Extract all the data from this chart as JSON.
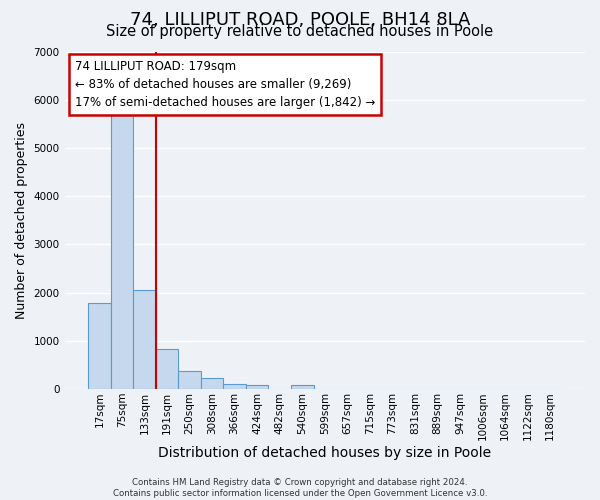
{
  "title": "74, LILLIPUT ROAD, POOLE, BH14 8LA",
  "subtitle": "Size of property relative to detached houses in Poole",
  "xlabel": "Distribution of detached houses by size in Poole",
  "ylabel": "Number of detached properties",
  "bin_labels": [
    "17sqm",
    "75sqm",
    "133sqm",
    "191sqm",
    "250sqm",
    "308sqm",
    "366sqm",
    "424sqm",
    "482sqm",
    "540sqm",
    "599sqm",
    "657sqm",
    "715sqm",
    "773sqm",
    "831sqm",
    "889sqm",
    "947sqm",
    "1006sqm",
    "1064sqm",
    "1122sqm",
    "1180sqm"
  ],
  "bar_values": [
    1780,
    5730,
    2060,
    830,
    380,
    220,
    110,
    80,
    0,
    80,
    0,
    0,
    0,
    0,
    0,
    0,
    0,
    0,
    0,
    0,
    0
  ],
  "bar_color": "#c5d8ed",
  "bar_edge_color": "#5b9bd5",
  "vline_pos": 2.5,
  "vline_color": "#cc0000",
  "annotation_text": "74 LILLIPUT ROAD: 179sqm\n← 83% of detached houses are smaller (9,269)\n17% of semi-detached houses are larger (1,842) →",
  "annotation_box_color": "#cc0000",
  "ylim": [
    0,
    7000
  ],
  "yticks": [
    0,
    1000,
    2000,
    3000,
    4000,
    5000,
    6000,
    7000
  ],
  "background_color": "#eef2f7",
  "grid_color": "#ffffff",
  "footer_text": "Contains HM Land Registry data © Crown copyright and database right 2024.\nContains public sector information licensed under the Open Government Licence v3.0.",
  "title_fontsize": 13,
  "subtitle_fontsize": 10.5,
  "xlabel_fontsize": 10,
  "ylabel_fontsize": 9,
  "tick_fontsize": 7.5,
  "annotation_fontsize": 8.5
}
